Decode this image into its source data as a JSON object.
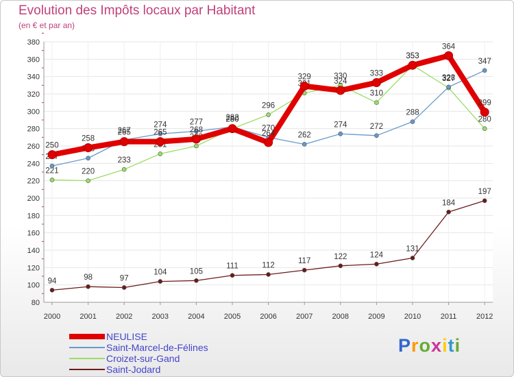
{
  "chart_data": {
    "type": "line",
    "title": "Evolution des Impôts locaux par Habitant",
    "subtitle": "(en € et par an)",
    "xlabel": "",
    "ylabel": "",
    "categories": [
      "2000",
      "2001",
      "2002",
      "2003",
      "2004",
      "2005",
      "2006",
      "2007",
      "2008",
      "2009",
      "2010",
      "2011",
      "2012"
    ],
    "ylim": [
      80,
      380
    ],
    "ytick_step": 20,
    "series": [
      {
        "name": "NEULISE",
        "color": "#e00000",
        "values": [
          250,
          258,
          265,
          265,
          268,
          280,
          264,
          329,
          324,
          333,
          353,
          364,
          299
        ]
      },
      {
        "name": "Saint-Marcel-de-Félines",
        "color": "#6699cc",
        "values": [
          237,
          246,
          267,
          274,
          277,
          282,
          270,
          262,
          274,
          272,
          288,
          328,
          347
        ]
      },
      {
        "name": "Croizet-sur-Gand",
        "color": "#99dd66",
        "values": [
          221,
          220,
          233,
          251,
          260,
          280,
          296,
          321,
          330,
          310,
          353,
          327,
          280
        ]
      },
      {
        "name": "Saint-Jodard",
        "color": "#6b1a1a",
        "values": [
          94,
          98,
          97,
          104,
          105,
          111,
          112,
          117,
          122,
          124,
          131,
          184,
          197
        ]
      }
    ]
  },
  "brand": {
    "letters": [
      "P",
      "r",
      "o",
      "x",
      "i",
      "t",
      "i"
    ],
    "colors": [
      "#3366cc",
      "#ff9900",
      "#66aa33",
      "#cc3399",
      "#ffcc00",
      "#3399cc",
      "#66aa33"
    ]
  }
}
